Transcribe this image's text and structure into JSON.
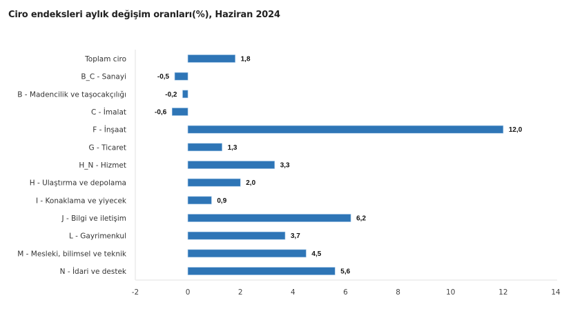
{
  "chart_data": {
    "type": "bar",
    "orientation": "horizontal",
    "title": "Ciro endeksleri aylık değişim oranları(%), Haziran 2024",
    "xlabel": "",
    "ylabel": "",
    "xlim": [
      -2,
      14
    ],
    "xticks": [
      -2,
      0,
      2,
      4,
      6,
      8,
      10,
      12,
      14
    ],
    "xtick_labels": [
      "-2",
      "0",
      "2",
      "4",
      "6",
      "8",
      "10",
      "12",
      "14"
    ],
    "grid": false,
    "legend": "none",
    "bar_color": "#2e75b6",
    "categories": [
      "Toplam ciro",
      "B_C - Sanayi",
      "B - Madencilik ve taşocakçılığı",
      "C - İmalat",
      "F - İnşaat",
      "G - Ticaret",
      "H_N - Hizmet",
      "H - Ulaştırma ve depolama",
      "I - Konaklama ve yiyecek",
      "J - Bilgi ve iletişim",
      "L - Gayrimenkul",
      "M - Mesleki, bilimsel ve teknik",
      "N - İdari ve destek"
    ],
    "values": [
      1.8,
      -0.5,
      -0.2,
      -0.6,
      12.0,
      1.3,
      3.3,
      2.0,
      0.9,
      6.2,
      3.7,
      4.5,
      5.6
    ],
    "value_labels": [
      "1,8",
      "-0,5",
      "-0,2",
      "-0,6",
      "12,0",
      "1,3",
      "3,3",
      "2,0",
      "0,9",
      "6,2",
      "3,7",
      "4,5",
      "5,6"
    ]
  }
}
